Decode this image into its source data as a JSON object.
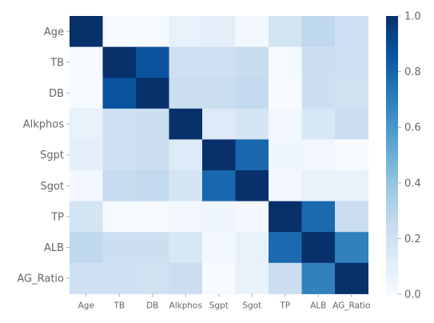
{
  "chart_data": {
    "type": "heatmap",
    "x_labels": [
      "Age",
      "TB",
      "DB",
      "Alkphos",
      "Sgpt",
      "Sgot",
      "TP",
      "ALB",
      "AG_Ratio"
    ],
    "y_labels": [
      "Age",
      "TB",
      "DB",
      "Alkphos",
      "Sgpt",
      "Sgot",
      "TP",
      "ALB",
      "AG_Ratio"
    ],
    "values": [
      [
        1.0,
        0.01,
        0.01,
        0.08,
        0.09,
        0.02,
        0.18,
        0.27,
        0.21
      ],
      [
        0.01,
        1.0,
        0.87,
        0.21,
        0.21,
        0.24,
        0.01,
        0.22,
        0.21
      ],
      [
        0.01,
        0.87,
        1.0,
        0.23,
        0.23,
        0.26,
        0.0,
        0.22,
        0.2
      ],
      [
        0.08,
        0.21,
        0.23,
        1.0,
        0.13,
        0.17,
        0.03,
        0.16,
        0.23
      ],
      [
        0.09,
        0.21,
        0.23,
        0.13,
        1.0,
        0.79,
        0.04,
        0.03,
        0.0
      ],
      [
        0.02,
        0.24,
        0.26,
        0.17,
        0.79,
        1.0,
        0.02,
        0.08,
        0.07
      ],
      [
        0.18,
        0.01,
        0.0,
        0.03,
        0.04,
        0.02,
        1.0,
        0.78,
        0.23
      ],
      [
        0.27,
        0.22,
        0.22,
        0.16,
        0.03,
        0.08,
        0.78,
        1.0,
        0.69
      ],
      [
        0.21,
        0.21,
        0.2,
        0.23,
        0.0,
        0.07,
        0.23,
        0.69,
        1.0
      ]
    ],
    "colormap": "Blues",
    "vmin": 0.0,
    "vmax": 1.0,
    "colorbar_ticks": [
      "0.0",
      "0.2",
      "0.4",
      "0.6",
      "0.8",
      "1.0"
    ],
    "colorbar_tick_values": [
      0.0,
      0.2,
      0.4,
      0.6,
      0.8,
      1.0
    ],
    "title": "",
    "xlabel": "",
    "ylabel": ""
  }
}
